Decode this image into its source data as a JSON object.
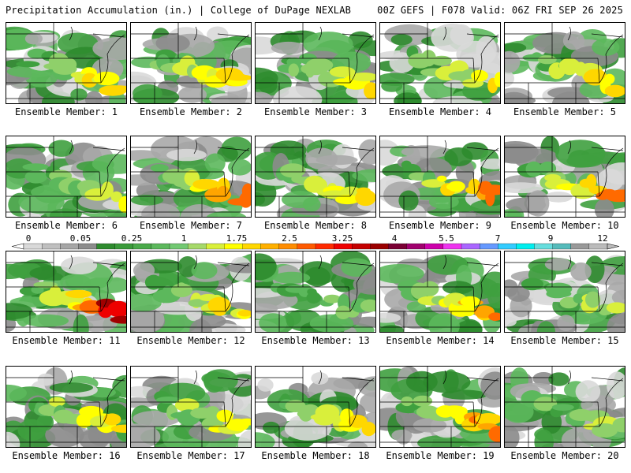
{
  "header": {
    "title": "Precipitation Accumulation (in.) | College of DuPage NEXLAB",
    "run_info": "00Z GEFS | F078 Valid: 06Z FRI SEP 26 2025"
  },
  "member_prefix": "Ensemble Member:",
  "members": [
    {
      "number": "1",
      "label": "Ensemble Member: 1",
      "max_band": 11,
      "intensity": 0.8
    },
    {
      "number": "2",
      "label": "Ensemble Member: 2",
      "max_band": 11,
      "intensity": 0.85
    },
    {
      "number": "3",
      "label": "Ensemble Member: 3",
      "max_band": 11,
      "intensity": 0.75
    },
    {
      "number": "4",
      "label": "Ensemble Member: 4",
      "max_band": 11,
      "intensity": 0.7
    },
    {
      "number": "5",
      "label": "Ensemble Member: 5",
      "max_band": 11,
      "intensity": 0.75
    },
    {
      "number": "6",
      "label": "Ensemble Member: 6",
      "max_band": 10,
      "intensity": 0.55
    },
    {
      "number": "7",
      "label": "Ensemble Member: 7",
      "max_band": 12,
      "intensity": 0.95
    },
    {
      "number": "8",
      "label": "Ensemble Member: 8",
      "max_band": 11,
      "intensity": 0.8
    },
    {
      "number": "9",
      "label": "Ensemble Member: 9",
      "max_band": 12,
      "intensity": 0.95
    },
    {
      "number": "10",
      "label": "Ensemble Member: 10",
      "max_band": 13,
      "intensity": 0.9
    },
    {
      "number": "11",
      "label": "Ensemble Member: 11",
      "max_band": 14,
      "intensity": 1.0
    },
    {
      "number": "12",
      "label": "Ensemble Member: 12",
      "max_band": 11,
      "intensity": 0.8
    },
    {
      "number": "13",
      "label": "Ensemble Member: 13",
      "max_band": 8,
      "intensity": 0.5
    },
    {
      "number": "14",
      "label": "Ensemble Member: 14",
      "max_band": 12,
      "intensity": 0.9
    },
    {
      "number": "15",
      "label": "Ensemble Member: 15",
      "max_band": 9,
      "intensity": 0.55
    },
    {
      "number": "16",
      "label": "Ensemble Member: 16",
      "max_band": 11,
      "intensity": 0.8
    },
    {
      "number": "17",
      "label": "Ensemble Member: 17",
      "max_band": 10,
      "intensity": 0.7
    },
    {
      "number": "18",
      "label": "Ensemble Member: 18",
      "max_band": 11,
      "intensity": 0.8
    },
    {
      "number": "19",
      "label": "Ensemble Member: 19",
      "max_band": 12,
      "intensity": 0.95
    },
    {
      "number": "20",
      "label": "Ensemble Member: 20",
      "max_band": 9,
      "intensity": 0.7
    }
  ],
  "colorbar": {
    "tick_labels": [
      "0",
      "0.05",
      "0.25",
      "1",
      "1.75",
      "2.5",
      "3.25",
      "4",
      "5.5",
      "7",
      "9",
      "12"
    ],
    "colors": [
      "#d9d9d9",
      "#bfbfbf",
      "#a6a6a6",
      "#8c8c8c",
      "#2e8b2e",
      "#3a9a3a",
      "#4aaa4a",
      "#5cb85c",
      "#72c972",
      "#a6d96a",
      "#d9ef3b",
      "#ffff00",
      "#ffd700",
      "#ffb000",
      "#ff8c00",
      "#ff5a00",
      "#ff2a00",
      "#ee0000",
      "#c40000",
      "#9a0000",
      "#7a0034",
      "#a0006e",
      "#cc00aa",
      "#ee33ee",
      "#aa66ff",
      "#6699ff",
      "#33ccff",
      "#00eeee",
      "#66dddd",
      "#55bbbb",
      "#999999",
      "#bbbbbb"
    ]
  }
}
